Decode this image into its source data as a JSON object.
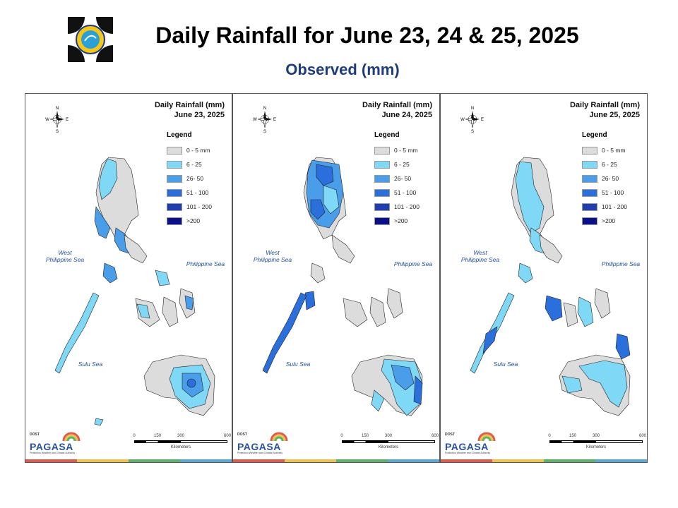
{
  "header": {
    "title": "Daily Rainfall for June 23, 24 & 25, 2025",
    "subtitle": "Observed (mm)"
  },
  "legend": {
    "heading": "Legend",
    "classes": [
      {
        "label": "0 - 5 mm",
        "color": "#dcdcdc"
      },
      {
        "label": "6 - 25",
        "color": "#7fd9f6"
      },
      {
        "label": "26- 50",
        "color": "#4a9de8"
      },
      {
        "label": "51 - 100",
        "color": "#2a6fdc"
      },
      {
        "label": "101 - 200",
        "color": "#1f3fb0"
      },
      {
        "label": ">200",
        "color": "#0a0f8a"
      }
    ]
  },
  "seas": {
    "west": "West\nPhilippine Sea",
    "east": "Philippine Sea",
    "sulu": "Sulu Sea"
  },
  "compass": {
    "n": "N",
    "s": "S",
    "e": "E",
    "w": "W"
  },
  "branding": {
    "dost": "DOST",
    "name": "PAGASA",
    "tagline": "Protection Weather and Climate Authority"
  },
  "scale_bar": {
    "ticks": [
      "0",
      "150",
      "300",
      "600"
    ],
    "unit": "Kilometers"
  },
  "panels": [
    {
      "title_line1": "Daily Rainfall (mm)",
      "date": "June 23, 2025"
    },
    {
      "title_line1": "Daily Rainfall (mm)",
      "date": "June 24, 2025"
    },
    {
      "title_line1": "Daily Rainfall (mm)",
      "date": "June 25, 2025"
    }
  ],
  "stripe_colors": [
    "#e05a4f",
    "#f0c24a",
    "#5db36a",
    "#5aa8d8"
  ]
}
